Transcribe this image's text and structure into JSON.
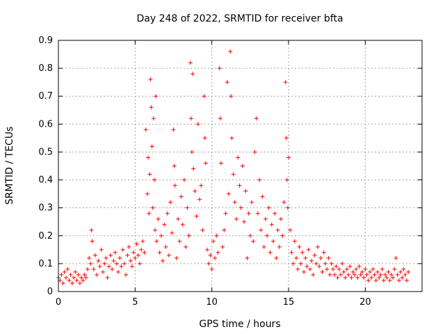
{
  "chart_data": {
    "type": "scatter",
    "title": "Day 248 of 2022, SRMTID for receiver bfta",
    "xlabel": "GPS time / hours",
    "ylabel": "SRMTID / TECUs",
    "xlim": [
      0,
      23.7
    ],
    "ylim": [
      0,
      0.9
    ],
    "x_ticks": [
      0,
      5,
      10,
      15,
      20
    ],
    "y_ticks": [
      0,
      0.1,
      0.2,
      0.3,
      0.4,
      0.5,
      0.6,
      0.7,
      0.8,
      0.9
    ],
    "x_tick_labels": [
      "0",
      "5",
      "10",
      "15",
      "20"
    ],
    "y_tick_labels": [
      "0",
      "0.1",
      "0.2",
      "0.3",
      "0.4",
      "0.5",
      "0.6",
      "0.7",
      "0.8",
      "0.9"
    ],
    "grid": true,
    "marker": "+",
    "color": "#ff0000",
    "series": [
      {
        "name": "SRMTID",
        "points": [
          [
            0.0,
            0.05
          ],
          [
            0.1,
            0.04
          ],
          [
            0.2,
            0.06
          ],
          [
            0.3,
            0.03
          ],
          [
            0.4,
            0.07
          ],
          [
            0.5,
            0.05
          ],
          [
            0.6,
            0.08
          ],
          [
            0.7,
            0.04
          ],
          [
            0.8,
            0.06
          ],
          [
            0.9,
            0.03
          ],
          [
            1.0,
            0.05
          ],
          [
            1.1,
            0.07
          ],
          [
            1.2,
            0.04
          ],
          [
            1.3,
            0.06
          ],
          [
            1.4,
            0.03
          ],
          [
            1.5,
            0.05
          ],
          [
            1.6,
            0.04
          ],
          [
            1.7,
            0.06
          ],
          [
            1.8,
            0.05
          ],
          [
            1.9,
            0.08
          ],
          [
            2.0,
            0.12
          ],
          [
            2.1,
            0.1
          ],
          [
            2.15,
            0.22
          ],
          [
            2.2,
            0.18
          ],
          [
            2.3,
            0.08
          ],
          [
            2.4,
            0.13
          ],
          [
            2.5,
            0.06
          ],
          [
            2.6,
            0.11
          ],
          [
            2.7,
            0.09
          ],
          [
            2.8,
            0.15
          ],
          [
            2.9,
            0.07
          ],
          [
            3.0,
            0.1
          ],
          [
            3.1,
            0.12
          ],
          [
            3.2,
            0.05
          ],
          [
            3.3,
            0.09
          ],
          [
            3.4,
            0.13
          ],
          [
            3.5,
            0.08
          ],
          [
            3.6,
            0.11
          ],
          [
            3.7,
            0.14
          ],
          [
            3.8,
            0.1
          ],
          [
            3.9,
            0.07
          ],
          [
            4.0,
            0.12
          ],
          [
            4.1,
            0.09
          ],
          [
            4.2,
            0.15
          ],
          [
            4.3,
            0.1
          ],
          [
            4.4,
            0.06
          ],
          [
            4.5,
            0.13
          ],
          [
            4.6,
            0.16
          ],
          [
            4.7,
            0.11
          ],
          [
            4.8,
            0.09
          ],
          [
            4.9,
            0.14
          ],
          [
            5.0,
            0.12
          ],
          [
            5.1,
            0.17
          ],
          [
            5.2,
            0.13
          ],
          [
            5.3,
            0.1
          ],
          [
            5.4,
            0.15
          ],
          [
            5.5,
            0.18
          ],
          [
            5.6,
            0.14
          ],
          [
            5.7,
            0.58
          ],
          [
            5.8,
            0.35
          ],
          [
            5.85,
            0.48
          ],
          [
            5.9,
            0.28
          ],
          [
            5.95,
            0.42
          ],
          [
            6.0,
            0.76
          ],
          [
            6.05,
            0.66
          ],
          [
            6.1,
            0.52
          ],
          [
            6.15,
            0.3
          ],
          [
            6.2,
            0.62
          ],
          [
            6.25,
            0.4
          ],
          [
            6.3,
            0.22
          ],
          [
            6.35,
            0.7
          ],
          [
            6.4,
            0.18
          ],
          [
            6.5,
            0.26
          ],
          [
            6.6,
            0.14
          ],
          [
            6.7,
            0.2
          ],
          [
            6.8,
            0.11
          ],
          [
            6.9,
            0.24
          ],
          [
            7.0,
            0.16
          ],
          [
            7.1,
            0.28
          ],
          [
            7.2,
            0.13
          ],
          [
            7.3,
            0.32
          ],
          [
            7.4,
            0.21
          ],
          [
            7.5,
            0.58
          ],
          [
            7.55,
            0.45
          ],
          [
            7.6,
            0.38
          ],
          [
            7.7,
            0.12
          ],
          [
            7.8,
            0.26
          ],
          [
            7.9,
            0.18
          ],
          [
            8.0,
            0.34
          ],
          [
            8.1,
            0.24
          ],
          [
            8.2,
            0.4
          ],
          [
            8.3,
            0.16
          ],
          [
            8.4,
            0.3
          ],
          [
            8.5,
            0.2
          ],
          [
            8.6,
            0.82
          ],
          [
            8.65,
            0.62
          ],
          [
            8.7,
            0.5
          ],
          [
            8.75,
            0.78
          ],
          [
            8.8,
            0.44
          ],
          [
            8.9,
            0.36
          ],
          [
            9.0,
            0.27
          ],
          [
            9.1,
            0.6
          ],
          [
            9.2,
            0.33
          ],
          [
            9.3,
            0.38
          ],
          [
            9.4,
            0.22
          ],
          [
            9.5,
            0.7
          ],
          [
            9.55,
            0.55
          ],
          [
            9.6,
            0.46
          ],
          [
            9.7,
            0.15
          ],
          [
            9.8,
            0.1
          ],
          [
            9.9,
            0.13
          ],
          [
            10.0,
            0.08
          ],
          [
            10.1,
            0.18
          ],
          [
            10.2,
            0.12
          ],
          [
            10.3,
            0.2
          ],
          [
            10.4,
            0.14
          ],
          [
            10.5,
            0.8
          ],
          [
            10.55,
            0.62
          ],
          [
            10.6,
            0.46
          ],
          [
            10.7,
            0.16
          ],
          [
            10.8,
            0.22
          ],
          [
            10.9,
            0.28
          ],
          [
            11.0,
            0.75
          ],
          [
            11.1,
            0.35
          ],
          [
            11.2,
            0.86
          ],
          [
            11.25,
            0.7
          ],
          [
            11.3,
            0.55
          ],
          [
            11.4,
            0.42
          ],
          [
            11.5,
            0.32
          ],
          [
            11.6,
            0.26
          ],
          [
            11.7,
            0.48
          ],
          [
            11.8,
            0.38
          ],
          [
            11.9,
            0.3
          ],
          [
            12.0,
            0.45
          ],
          [
            12.1,
            0.25
          ],
          [
            12.2,
            0.36
          ],
          [
            12.3,
            0.12
          ],
          [
            12.4,
            0.28
          ],
          [
            12.5,
            0.2
          ],
          [
            12.6,
            0.32
          ],
          [
            12.7,
            0.18
          ],
          [
            12.8,
            0.5
          ],
          [
            12.9,
            0.62
          ],
          [
            13.0,
            0.28
          ],
          [
            13.1,
            0.4
          ],
          [
            13.2,
            0.22
          ],
          [
            13.3,
            0.34
          ],
          [
            13.4,
            0.16
          ],
          [
            13.5,
            0.26
          ],
          [
            13.6,
            0.2
          ],
          [
            13.7,
            0.3
          ],
          [
            13.8,
            0.14
          ],
          [
            13.9,
            0.24
          ],
          [
            14.0,
            0.18
          ],
          [
            14.1,
            0.28
          ],
          [
            14.2,
            0.12
          ],
          [
            14.3,
            0.22
          ],
          [
            14.4,
            0.16
          ],
          [
            14.5,
            0.26
          ],
          [
            14.6,
            0.2
          ],
          [
            14.7,
            0.32
          ],
          [
            14.8,
            0.75
          ],
          [
            14.85,
            0.55
          ],
          [
            14.9,
            0.4
          ],
          [
            14.95,
            0.3
          ],
          [
            15.0,
            0.48
          ],
          [
            15.1,
            0.22
          ],
          [
            15.2,
            0.14
          ],
          [
            15.3,
            0.1
          ],
          [
            15.4,
            0.18
          ],
          [
            15.5,
            0.12
          ],
          [
            15.6,
            0.08
          ],
          [
            15.7,
            0.16
          ],
          [
            15.8,
            0.1
          ],
          [
            15.9,
            0.14
          ],
          [
            16.0,
            0.07
          ],
          [
            16.1,
            0.12
          ],
          [
            16.2,
            0.09
          ],
          [
            16.3,
            0.15
          ],
          [
            16.4,
            0.08
          ],
          [
            16.5,
            0.11
          ],
          [
            16.6,
            0.06
          ],
          [
            16.7,
            0.13
          ],
          [
            16.8,
            0.1
          ],
          [
            16.9,
            0.16
          ],
          [
            17.0,
            0.09
          ],
          [
            17.1,
            0.12
          ],
          [
            17.2,
            0.07
          ],
          [
            17.3,
            0.14
          ],
          [
            17.4,
            0.1
          ],
          [
            17.5,
            0.08
          ],
          [
            17.6,
            0.12
          ],
          [
            17.7,
            0.06
          ],
          [
            17.8,
            0.1
          ],
          [
            17.9,
            0.08
          ],
          [
            18.0,
            0.06
          ],
          [
            18.1,
            0.09
          ],
          [
            18.2,
            0.05
          ],
          [
            18.3,
            0.08
          ],
          [
            18.4,
            0.06
          ],
          [
            18.5,
            0.1
          ],
          [
            18.6,
            0.07
          ],
          [
            18.7,
            0.05
          ],
          [
            18.8,
            0.08
          ],
          [
            18.9,
            0.06
          ],
          [
            19.0,
            0.09
          ],
          [
            19.1,
            0.05
          ],
          [
            19.2,
            0.07
          ],
          [
            19.3,
            0.06
          ],
          [
            19.4,
            0.08
          ],
          [
            19.5,
            0.05
          ],
          [
            19.6,
            0.09
          ],
          [
            19.7,
            0.06
          ],
          [
            19.8,
            0.07
          ],
          [
            19.9,
            0.05
          ],
          [
            20.0,
            0.08
          ],
          [
            20.1,
            0.06
          ],
          [
            20.2,
            0.04
          ],
          [
            20.3,
            0.07
          ],
          [
            20.4,
            0.05
          ],
          [
            20.5,
            0.08
          ],
          [
            20.6,
            0.06
          ],
          [
            20.7,
            0.04
          ],
          [
            20.8,
            0.07
          ],
          [
            20.9,
            0.05
          ],
          [
            21.0,
            0.06
          ],
          [
            21.1,
            0.08
          ],
          [
            21.2,
            0.04
          ],
          [
            21.3,
            0.06
          ],
          [
            21.4,
            0.05
          ],
          [
            21.5,
            0.07
          ],
          [
            21.6,
            0.04
          ],
          [
            21.7,
            0.06
          ],
          [
            21.8,
            0.05
          ],
          [
            21.9,
            0.08
          ],
          [
            22.0,
            0.12
          ],
          [
            22.1,
            0.06
          ],
          [
            22.2,
            0.04
          ],
          [
            22.3,
            0.07
          ],
          [
            22.4,
            0.05
          ],
          [
            22.5,
            0.08
          ],
          [
            22.6,
            0.06
          ],
          [
            22.7,
            0.04
          ],
          [
            22.8,
            0.07
          ]
        ]
      }
    ]
  }
}
